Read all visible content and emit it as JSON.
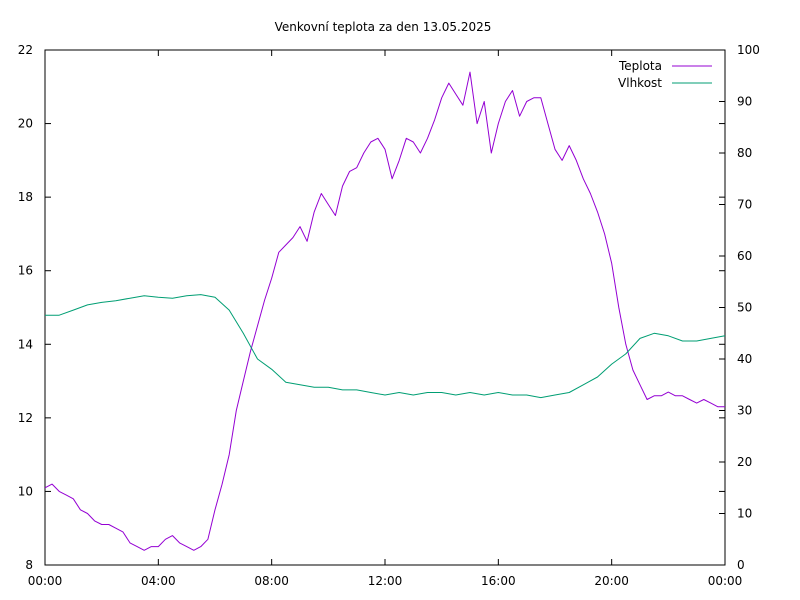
{
  "chart_data": {
    "type": "line",
    "title": "Venkovní teplota za den 13.05.2025",
    "xlabel": "",
    "ylabel": "",
    "y2label": "",
    "x_ticks": [
      "00:00",
      "04:00",
      "08:00",
      "12:00",
      "16:00",
      "20:00",
      "00:00"
    ],
    "xlim_hours": [
      0,
      24
    ],
    "ylim": [
      8,
      22
    ],
    "y_ticks": [
      8,
      10,
      12,
      14,
      16,
      18,
      20,
      22
    ],
    "y2lim": [
      0,
      100
    ],
    "y2_ticks": [
      0,
      10,
      20,
      30,
      40,
      50,
      60,
      70,
      80,
      90,
      100
    ],
    "grid": false,
    "legend_position": "top-right",
    "series": [
      {
        "name": "Teplota",
        "axis": "left",
        "color": "#9400d3",
        "x": [
          0,
          0.25,
          0.5,
          0.75,
          1,
          1.25,
          1.5,
          1.75,
          2,
          2.25,
          2.5,
          2.75,
          3,
          3.25,
          3.5,
          3.75,
          4,
          4.25,
          4.5,
          4.75,
          5,
          5.25,
          5.5,
          5.75,
          6,
          6.25,
          6.5,
          6.75,
          7,
          7.25,
          7.5,
          7.75,
          8,
          8.25,
          8.5,
          8.75,
          9,
          9.25,
          9.5,
          9.75,
          10,
          10.25,
          10.5,
          10.75,
          11,
          11.25,
          11.5,
          11.75,
          12,
          12.25,
          12.5,
          12.75,
          13,
          13.25,
          13.5,
          13.75,
          14,
          14.25,
          14.5,
          14.75,
          15,
          15.25,
          15.5,
          15.75,
          16,
          16.25,
          16.5,
          16.75,
          17,
          17.25,
          17.5,
          17.75,
          18,
          18.25,
          18.5,
          18.75,
          19,
          19.25,
          19.5,
          19.75,
          20,
          20.25,
          20.5,
          20.75,
          21,
          21.25,
          21.5,
          21.75,
          22,
          22.25,
          22.5,
          22.75,
          23,
          23.25,
          23.5,
          23.75,
          24
        ],
        "values": [
          10.1,
          10.2,
          10.0,
          9.9,
          9.8,
          9.5,
          9.4,
          9.2,
          9.1,
          9.1,
          9.0,
          8.9,
          8.6,
          8.5,
          8.4,
          8.5,
          8.5,
          8.7,
          8.8,
          8.6,
          8.5,
          8.4,
          8.5,
          8.7,
          9.5,
          10.2,
          11.0,
          12.2,
          13.0,
          13.8,
          14.5,
          15.2,
          15.8,
          16.5,
          16.7,
          16.9,
          17.2,
          16.8,
          17.6,
          18.1,
          17.8,
          17.5,
          18.3,
          18.7,
          18.8,
          19.2,
          19.5,
          19.6,
          19.3,
          18.5,
          19.0,
          19.6,
          19.5,
          19.2,
          19.6,
          20.1,
          20.7,
          21.1,
          20.8,
          20.5,
          21.4,
          20.0,
          20.6,
          19.2,
          20.0,
          20.6,
          20.9,
          20.2,
          20.6,
          20.7,
          20.7,
          20.0,
          19.3,
          19.0,
          19.4,
          19.0,
          18.5,
          18.1,
          17.6,
          17.0,
          16.2,
          15.0,
          14.0,
          13.3,
          12.9,
          12.5,
          12.6,
          12.6,
          12.7,
          12.6,
          12.6,
          12.5,
          12.4,
          12.5,
          12.4,
          12.3,
          12.3
        ]
      },
      {
        "name": "Vlhkost",
        "axis": "right",
        "color": "#009e73",
        "x": [
          0,
          0.5,
          1,
          1.5,
          2,
          2.5,
          3,
          3.5,
          4,
          4.5,
          5,
          5.5,
          6,
          6.5,
          7,
          7.5,
          8,
          8.5,
          9,
          9.5,
          10,
          10.5,
          11,
          11.5,
          12,
          12.5,
          13,
          13.5,
          14,
          14.5,
          15,
          15.5,
          16,
          16.5,
          17,
          17.5,
          18,
          18.5,
          19,
          19.5,
          20,
          20.5,
          21,
          21.5,
          22,
          22.5,
          23,
          23.5,
          24
        ],
        "values": [
          48.5,
          48.5,
          49.5,
          50.5,
          51.0,
          51.3,
          51.8,
          52.3,
          52.0,
          51.8,
          52.3,
          52.5,
          52.0,
          49.5,
          45.0,
          40.0,
          38.0,
          35.5,
          35.0,
          34.5,
          34.5,
          34.0,
          34.0,
          33.5,
          33.0,
          33.5,
          33.0,
          33.5,
          33.5,
          33.0,
          33.5,
          33.0,
          33.5,
          33.0,
          33.0,
          32.5,
          33.0,
          33.5,
          35.0,
          36.5,
          39.0,
          41.0,
          44.0,
          45.0,
          44.5,
          43.5,
          43.5,
          44.0,
          44.5
        ]
      }
    ]
  }
}
